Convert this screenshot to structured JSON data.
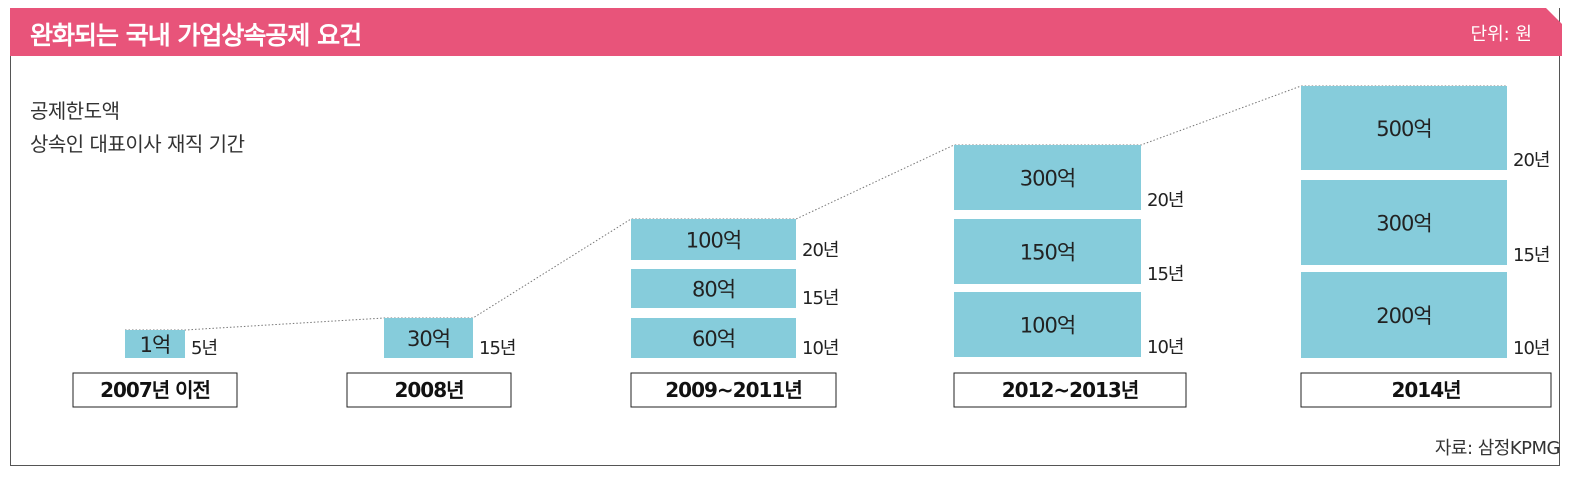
{
  "header": {
    "title": "완화되는 국내 가업상속공제 요건",
    "unit": "단위: 원",
    "color": "#e8547a"
  },
  "legend": {
    "line1": "공제한도액",
    "line2": "상속인 대표이사 재직 기간"
  },
  "source": "자료: 삼정KPMG",
  "chart_data": {
    "type": "bar",
    "bar_color": "#86ccdb",
    "categories": [
      "2007년 이전",
      "2008년",
      "2009~2011년",
      "2012~2013년",
      "2014년"
    ],
    "groups": [
      {
        "period": "2007년 이전",
        "tiers": [
          {
            "amount_label": "1억",
            "amount_eok": 1,
            "tenure": "5년"
          }
        ]
      },
      {
        "period": "2008년",
        "tiers": [
          {
            "amount_label": "30억",
            "amount_eok": 30,
            "tenure": "15년"
          }
        ]
      },
      {
        "period": "2009~2011년",
        "tiers": [
          {
            "amount_label": "60억",
            "amount_eok": 60,
            "tenure": "10년"
          },
          {
            "amount_label": "80억",
            "amount_eok": 80,
            "tenure": "15년"
          },
          {
            "amount_label": "100억",
            "amount_eok": 100,
            "tenure": "20년"
          }
        ]
      },
      {
        "period": "2012~2013년",
        "tiers": [
          {
            "amount_label": "100억",
            "amount_eok": 100,
            "tenure": "10년"
          },
          {
            "amount_label": "150억",
            "amount_eok": 150,
            "tenure": "15년"
          },
          {
            "amount_label": "300억",
            "amount_eok": 300,
            "tenure": "20년"
          }
        ]
      },
      {
        "period": "2014년",
        "tiers": [
          {
            "amount_label": "200억",
            "amount_eok": 200,
            "tenure": "10년"
          },
          {
            "amount_label": "300억",
            "amount_eok": 300,
            "tenure": "15년"
          },
          {
            "amount_label": "500억",
            "amount_eok": 500,
            "tenure": "20년"
          }
        ]
      }
    ],
    "trend_line": "dotted line connecting the top of each period's highest limit",
    "legend_placement": "top-left"
  }
}
